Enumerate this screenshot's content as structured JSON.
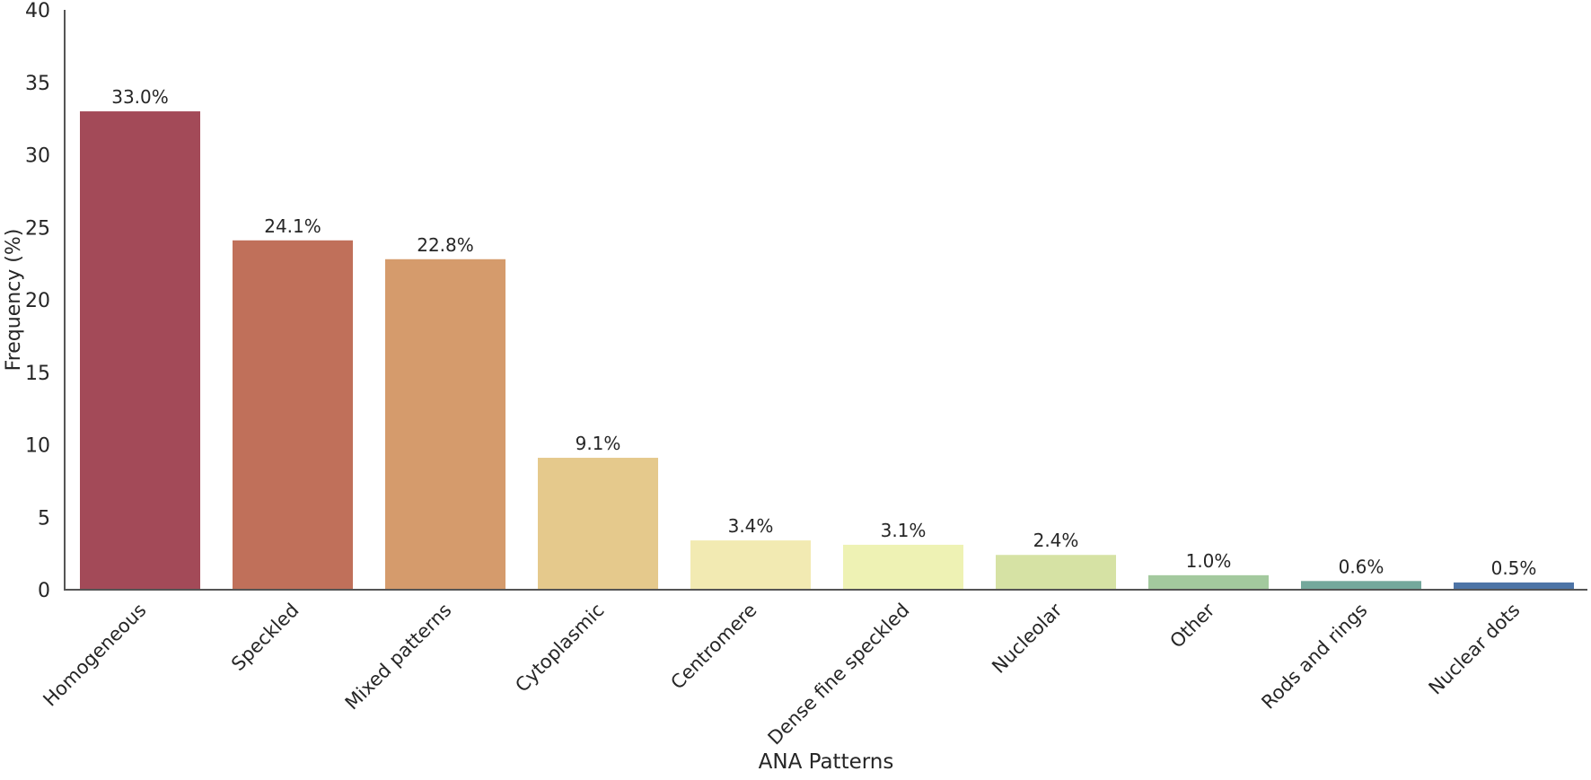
{
  "chart_data": {
    "type": "bar",
    "title": "",
    "xlabel": "ANA Patterns",
    "ylabel": "Frequency (%)",
    "ylim": [
      0,
      40
    ],
    "yticks": [
      0,
      5,
      10,
      15,
      20,
      25,
      30,
      35,
      40
    ],
    "grid": false,
    "categories": [
      "Homogeneous",
      "Speckled",
      "Mixed patterns",
      "Cytoplasmic",
      "Centromere",
      "Dense fine speckled",
      "Nucleolar",
      "Other",
      "Rods and rings",
      "Nuclear dots"
    ],
    "values": [
      33.0,
      24.1,
      22.8,
      9.1,
      3.4,
      3.1,
      2.4,
      1.0,
      0.6,
      0.5
    ],
    "labels": [
      "33.0%",
      "24.1%",
      "22.8%",
      "9.1%",
      "3.4%",
      "3.1%",
      "2.4%",
      "1.0%",
      "0.6%",
      "0.5%"
    ],
    "colors": [
      "#a34a58",
      "#c0705a",
      "#d59b6c",
      "#e5c98c",
      "#f2eab2",
      "#eef2b4",
      "#d6e2a4",
      "#a3c99e",
      "#74a89c",
      "#4d74a6"
    ]
  }
}
